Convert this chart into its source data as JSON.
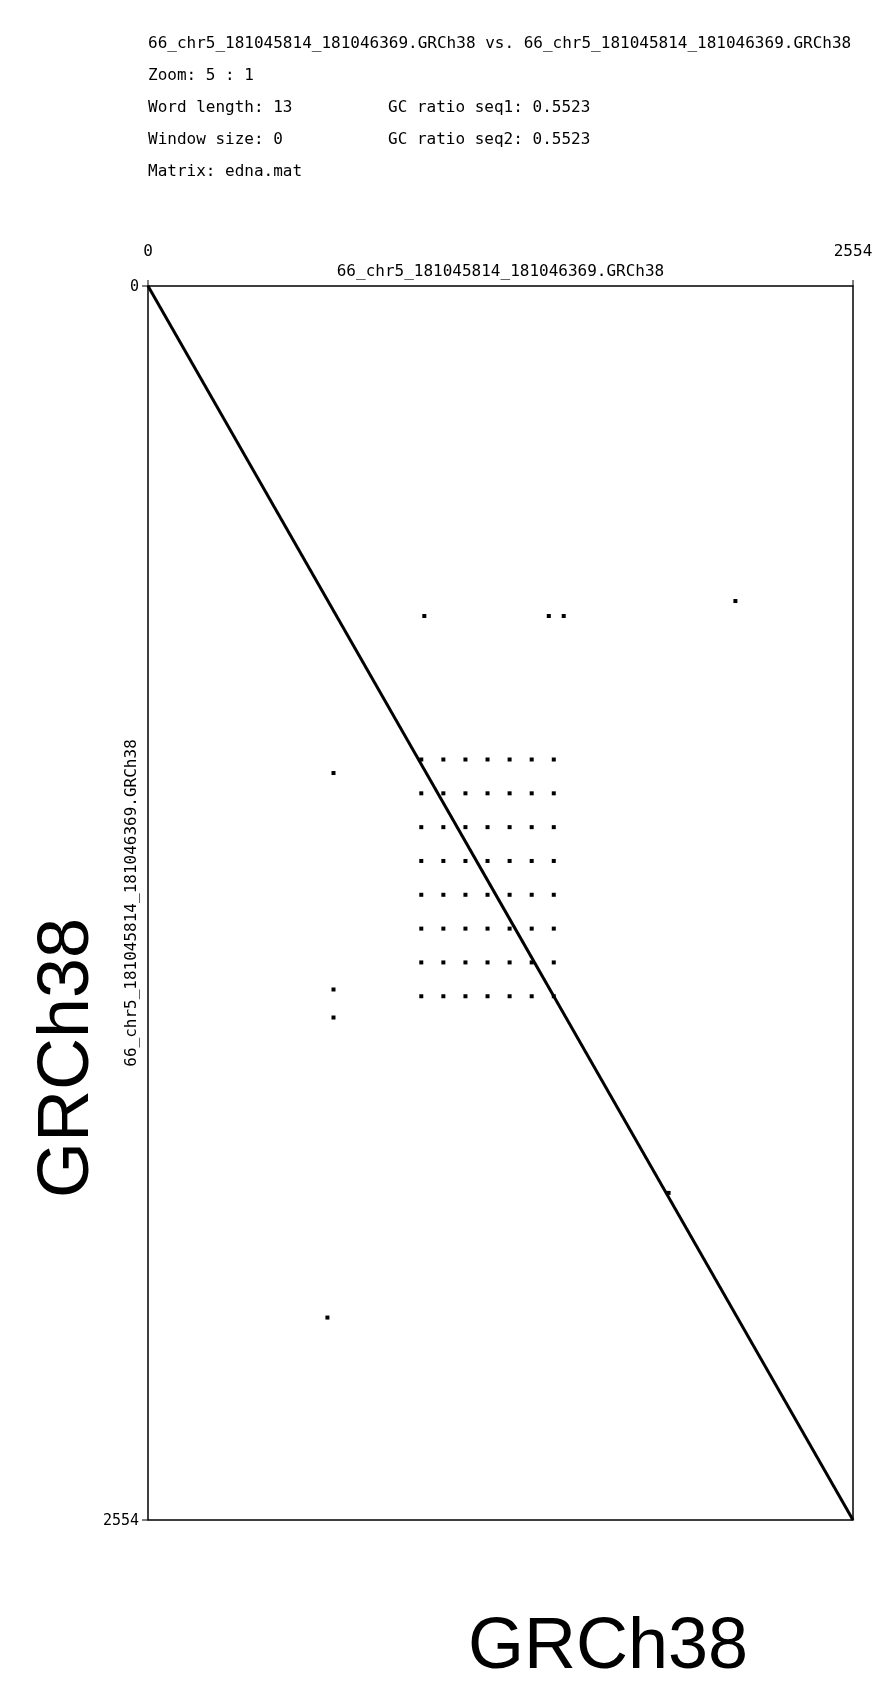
{
  "chart_data": {
    "type": "scatter",
    "title": "66_chr5_181045814_181046369.GRCh38 vs. 66_chr5_181045814_181046369.GRCh38",
    "xlabel": "66_chr5_181045814_181046369.GRCh38",
    "ylabel": "66_chr5_181045814_181046369.GRCh38",
    "annotations": [
      "Zoom: 5 : 1",
      "Word length: 13",
      "GC ratio seq1: 0.5523",
      "Window size: 0",
      "GC ratio seq2: 0.5523",
      "Matrix: edna.mat",
      "GRCh38",
      "GRCh38"
    ],
    "xlim": [
      0,
      2554
    ],
    "ylim": [
      2554,
      0
    ],
    "xticks": [
      0,
      2554
    ],
    "yticks": [
      0,
      2554
    ],
    "series": [
      {
        "type": "line",
        "color": "#000000",
        "line_style": "solid",
        "x": [
          0,
          2554
        ],
        "values": [
          0,
          2554
        ]
      },
      {
        "color": "#000000",
        "marker": "square",
        "x": [
          1001,
          1452,
          1506,
          2128,
          672,
          672,
          672,
          1886,
          650
        ],
        "values": [
          683,
          683,
          683,
          652,
          1008,
          1456,
          1514,
          1877,
          2135
        ]
      },
      {
        "color": "#000000",
        "marker": "square",
        "x": [
          990,
          1070,
          1150,
          1230,
          1310,
          1390,
          1470,
          990,
          1070,
          1150,
          1230,
          1310,
          1390,
          1470,
          990,
          1070,
          1150,
          1230,
          1310,
          1390,
          1470,
          990,
          1070,
          1150,
          1230,
          1310,
          1390,
          1470,
          990,
          1070,
          1150,
          1230,
          1310,
          1390,
          1470,
          990,
          1070,
          1150,
          1230,
          1310,
          1390,
          1470,
          990,
          1070,
          1150,
          1230,
          1310,
          1390,
          1470,
          990,
          1070,
          1150,
          1230,
          1310,
          1390,
          1470
        ],
        "values": [
          980,
          980,
          980,
          980,
          980,
          980,
          980,
          1050,
          1050,
          1050,
          1050,
          1050,
          1050,
          1050,
          1120,
          1120,
          1120,
          1120,
          1120,
          1120,
          1120,
          1190,
          1190,
          1190,
          1190,
          1190,
          1190,
          1190,
          1260,
          1260,
          1260,
          1260,
          1260,
          1260,
          1260,
          1330,
          1330,
          1330,
          1330,
          1330,
          1330,
          1330,
          1400,
          1400,
          1400,
          1400,
          1400,
          1400,
          1400,
          1470,
          1470,
          1470,
          1470,
          1470,
          1470,
          1470
        ]
      }
    ]
  }
}
